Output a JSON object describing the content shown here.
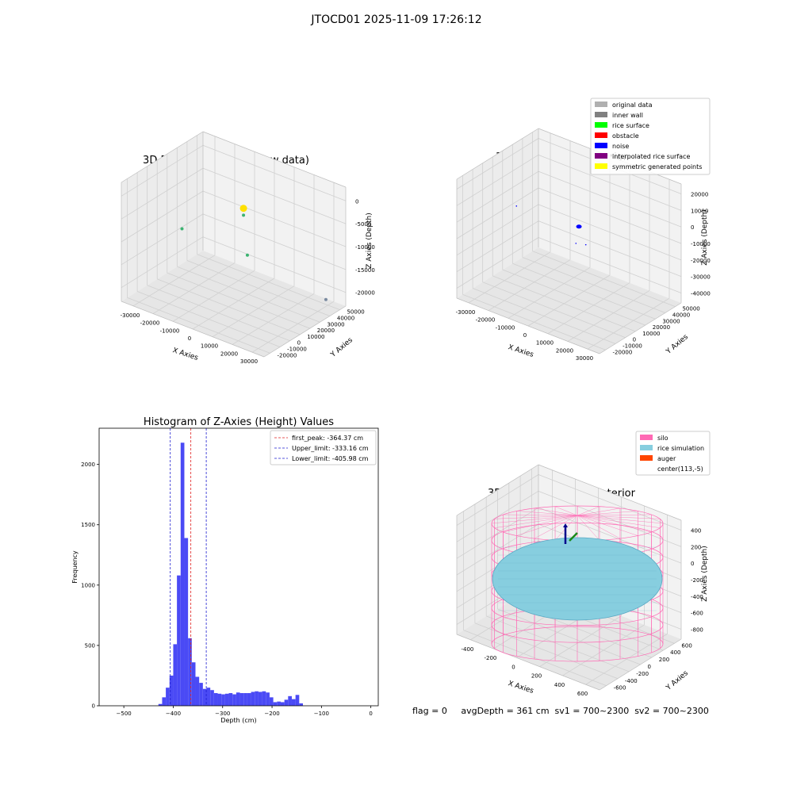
{
  "figure": {
    "title": "JTOCD01 2025-11-09 17:26:12"
  },
  "colors": {
    "pane_left": "#ececec",
    "pane_right": "#f2f2f2",
    "pane_floor": "#e6e6e6",
    "grid": "#d0d0d0",
    "hist_bar": "#4a4af5",
    "peak_line": "#e02020",
    "limit_line": "#1f1fd0",
    "silo_wire": "#ff69b4",
    "rice": "#87cedf",
    "rice_edge": "#5aa9c4",
    "auger_blue": "#00008b",
    "auger_green": "#1a8a1a"
  },
  "chart_data": [
    {
      "id": "raw3d",
      "type": "scatter",
      "title": "3D Plot of Silo Interior(row data)",
      "xlabel": "X Axies",
      "ylabel": "Y Axies",
      "zlabel": "Z Axies (Depth)",
      "xticks": [
        "-30000",
        "-20000",
        "-10000",
        "0",
        "10000",
        "20000",
        "30000"
      ],
      "yticks": [
        "-20000",
        "-10000",
        "0",
        "10000",
        "20000",
        "30000",
        "40000",
        "50000"
      ],
      "zticks": [
        "0",
        "-5000",
        "-10000",
        "-15000",
        "-20000"
      ],
      "points": [
        {
          "x": -26000,
          "y": 15000,
          "z": -11000,
          "color": "#3cb371"
        },
        {
          "x": 0,
          "y": 25000,
          "z": -3500,
          "color": "#ffe000"
        },
        {
          "x": 0,
          "y": 25000,
          "z": -5000,
          "color": "#3cb371"
        },
        {
          "x": 12000,
          "y": 5000,
          "z": -9000,
          "color": "#3cb371"
        },
        {
          "x": 30000,
          "y": 48000,
          "z": -21500,
          "color": "#7a8aa0"
        }
      ]
    },
    {
      "id": "classify3d",
      "type": "scatter",
      "title": "3D classify of Silo Interior",
      "xlabel": "X Axies",
      "ylabel": "Y Axies",
      "zlabel": "Z Axies (Depth)",
      "xticks": [
        "-30000",
        "-20000",
        "-10000",
        "0",
        "10000",
        "20000",
        "30000"
      ],
      "yticks": [
        "-20000",
        "-10000",
        "0",
        "10000",
        "20000",
        "30000",
        "40000",
        "50000"
      ],
      "zticks": [
        "20000",
        "10000",
        "0",
        "-10000",
        "-20000",
        "-30000",
        "-40000"
      ],
      "legend": [
        {
          "label": "original data",
          "color": "#b0b0b0"
        },
        {
          "label": "inner wall",
          "color": "#808080"
        },
        {
          "label": "rice surface",
          "color": "#00ff00"
        },
        {
          "label": "obstacle",
          "color": "#ff0000"
        },
        {
          "label": "noise",
          "color": "#0000ff"
        },
        {
          "label": "interpolated rice surface",
          "color": "#800080"
        },
        {
          "label": "symmetric generated points",
          "color": "#ffff00"
        }
      ],
      "points": [
        {
          "x": -28000,
          "y": 18000,
          "z": -3000,
          "color": "#0000ff"
        },
        {
          "x": 0,
          "y": 22000,
          "z": -14000,
          "color": "#0000ff"
        },
        {
          "x": 0,
          "y": 25000,
          "z": -5000,
          "color": "#0000ff"
        },
        {
          "x": 12000,
          "y": 8000,
          "z": -4000,
          "color": "#0000ff"
        }
      ]
    },
    {
      "id": "histogram",
      "type": "bar",
      "title": "Histogram of Z-Axies (Height) Values",
      "xlabel": "Depth (cm)",
      "ylabel": "Frequency",
      "xlim": [
        -550,
        15
      ],
      "ylim": [
        0,
        2300
      ],
      "xticks": [
        -500,
        -400,
        -300,
        -200,
        -100,
        0
      ],
      "yticks": [
        0,
        500,
        1000,
        1500,
        2000
      ],
      "bin_start": -430,
      "bin_width": 7.5,
      "values": [
        15,
        70,
        150,
        250,
        510,
        1080,
        2180,
        1390,
        560,
        360,
        240,
        190,
        140,
        150,
        130,
        105,
        100,
        95,
        100,
        105,
        95,
        110,
        105,
        105,
        105,
        115,
        120,
        115,
        120,
        110,
        70,
        30,
        35,
        30,
        50,
        80,
        55,
        90,
        20
      ],
      "lines": [
        {
          "label": "first_peak: -364.37 cm",
          "x": -364.37,
          "color": "#e02020"
        },
        {
          "label": "Upper_limit: -333.16 cm",
          "x": -333.16,
          "color": "#1f1fd0"
        },
        {
          "label": "Lower_limit: -405.98 cm",
          "x": -405.98,
          "color": "#1f1fd0"
        }
      ]
    },
    {
      "id": "sim3d",
      "type": "scatter",
      "title": "3D simulation of Silo Interior",
      "xlabel": "X Axies",
      "ylabel": "Y Axies",
      "zlabel": "Z Axies (Depth)",
      "xticks": [
        "-400",
        "-200",
        "0",
        "200",
        "400",
        "600"
      ],
      "yticks": [
        "-600",
        "-400",
        "-200",
        "0",
        "200",
        "400",
        "600"
      ],
      "zticks": [
        "400",
        "200",
        "0",
        "-200",
        "-400",
        "-600",
        "-800"
      ],
      "legend": [
        {
          "label": "silo",
          "color": "#ff69b4"
        },
        {
          "label": "rice simulation",
          "color": "#87cedf"
        },
        {
          "label": "auger",
          "color": "#ff4500"
        },
        {
          "label": "center(113,-5)",
          "color": ""
        }
      ]
    }
  ],
  "status": {
    "text": "flag = 0     avgDepth = 361 cm  sv1 = 700~2300  sv2 = 700~2300"
  }
}
